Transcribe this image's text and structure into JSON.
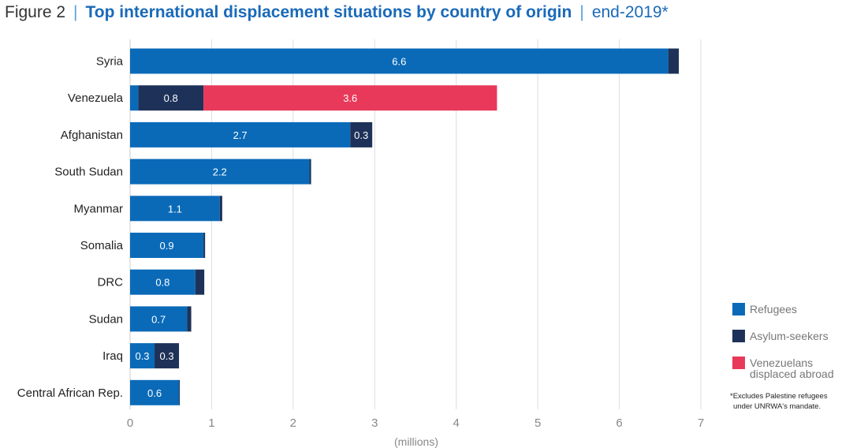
{
  "header": {
    "figure": "Figure 2",
    "title": "Top international displacement situations by country of origin",
    "date": "end-2019*"
  },
  "colors": {
    "Refugees": "#0a6ab8",
    "Asylum-seekers": "#1e3259",
    "Venezuelans displaced abroad": "#e8395a"
  },
  "chart_data": {
    "type": "bar",
    "orientation": "horizontal",
    "stacked": true,
    "categories": [
      "Syria",
      "Venezuela",
      "Afghanistan",
      "South Sudan",
      "Myanmar",
      "Somalia",
      "DRC",
      "Sudan",
      "Iraq",
      "Central African Rep."
    ],
    "series": [
      {
        "name": "Refugees",
        "values": [
          6.6,
          0.1,
          2.7,
          2.2,
          1.1,
          0.9,
          0.8,
          0.7,
          0.3,
          0.6
        ],
        "labels": [
          "6.6",
          "",
          "2.7",
          "2.2",
          "1.1",
          "0.9",
          "0.8",
          "0.7",
          "0.3",
          "0.6"
        ]
      },
      {
        "name": "Asylum-seekers",
        "values": [
          0.13,
          0.8,
          0.27,
          0.02,
          0.03,
          0.02,
          0.11,
          0.05,
          0.3,
          0.01
        ],
        "labels": [
          "",
          "0.8",
          "0.3",
          "",
          "",
          "",
          "",
          "",
          "0.3",
          ""
        ]
      },
      {
        "name": "Venezuelans displaced abroad",
        "values": [
          0,
          3.6,
          0,
          0,
          0,
          0,
          0,
          0,
          0,
          0
        ],
        "labels": [
          "",
          "3.6",
          "",
          "",
          "",
          "",
          "",
          "",
          "",
          ""
        ]
      }
    ],
    "xlim": [
      0,
      7
    ],
    "xticks": [
      "0",
      "1",
      "2",
      "3",
      "4",
      "5",
      "6",
      "7"
    ],
    "xlabel": "(millions)",
    "grid": true,
    "legend": {
      "position": "right",
      "entries": [
        {
          "series": "Refugees",
          "lines": [
            "Refugees"
          ]
        },
        {
          "series": "Asylum-seekers",
          "lines": [
            "Asylum-seekers"
          ]
        },
        {
          "series": "Venezuelans displaced abroad",
          "lines": [
            "Venezuelans",
            "displaced abroad"
          ]
        }
      ]
    },
    "note": [
      "*Excludes Palestine refugees",
      "under UNRWA's mandate."
    ]
  }
}
